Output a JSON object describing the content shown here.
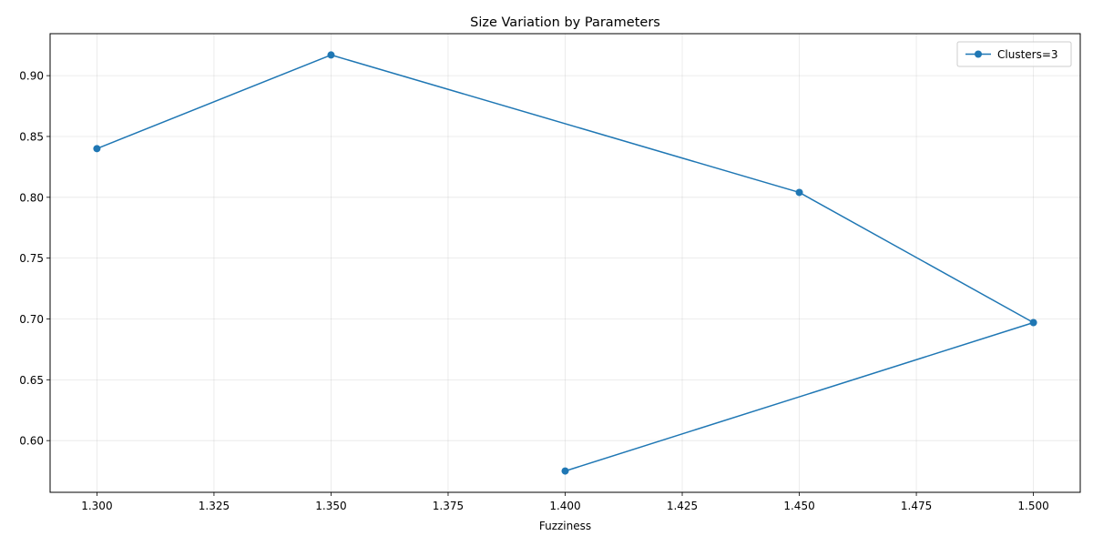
{
  "chart_data": {
    "type": "line",
    "title": "Size Variation by Parameters",
    "xlabel": "Fuzziness",
    "ylabel": "",
    "xlim": [
      1.29,
      1.51
    ],
    "ylim": [
      0.5575,
      0.9345
    ],
    "x_ticks": [
      1.3,
      1.325,
      1.35,
      1.375,
      1.4,
      1.425,
      1.45,
      1.475,
      1.5
    ],
    "x_tick_labels": [
      "1.300",
      "1.325",
      "1.350",
      "1.375",
      "1.400",
      "1.425",
      "1.450",
      "1.475",
      "1.500"
    ],
    "y_ticks": [
      0.6,
      0.65,
      0.7,
      0.75,
      0.8,
      0.85,
      0.9
    ],
    "y_tick_labels": [
      "0.60",
      "0.65",
      "0.70",
      "0.75",
      "0.80",
      "0.85",
      "0.90"
    ],
    "grid": true,
    "legend_position": "top-right",
    "series": [
      {
        "name": "Clusters=3",
        "color": "#1f77b4",
        "marker": "circle",
        "x": [
          1.3,
          1.35,
          1.45,
          1.5,
          1.4
        ],
        "y": [
          0.84,
          0.917,
          0.804,
          0.697,
          0.575
        ]
      }
    ]
  }
}
